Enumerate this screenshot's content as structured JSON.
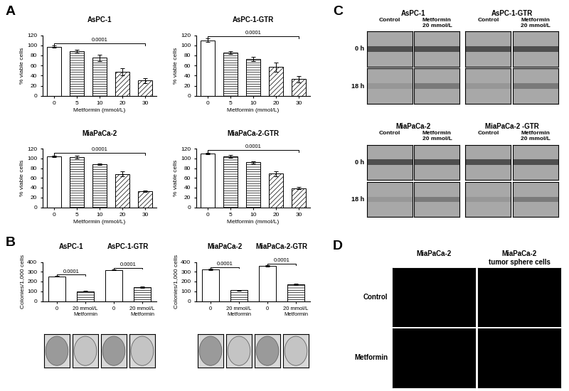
{
  "panel_labels": [
    "A",
    "B",
    "C",
    "D"
  ],
  "chart_data": [
    {
      "type": "bar",
      "title": "AsPC-1",
      "x_label": "Metformin (mmol/L)",
      "y_label": "% viable cells",
      "categories": [
        "0",
        "5",
        "10",
        "20",
        "30"
      ],
      "values": [
        97,
        88,
        75,
        47,
        30
      ],
      "errors": [
        2,
        3,
        6,
        7,
        5
      ],
      "color": "#ffffff",
      "ylim": [
        0,
        120
      ],
      "yticks": [
        0,
        20,
        40,
        60,
        80,
        100,
        120
      ],
      "annotations": [
        {
          "text": "0.0001",
          "between": [
            0,
            4
          ]
        }
      ]
    },
    {
      "type": "bar",
      "title": "AsPC-1-GTR",
      "x_label": "Metformin (mmol/L)",
      "y_label": "% viable cells",
      "categories": [
        "0",
        "5",
        "10",
        "20",
        "30"
      ],
      "values": [
        110,
        85,
        73,
        57,
        33
      ],
      "errors": [
        3,
        3,
        4,
        9,
        6
      ],
      "color": "#ffffff",
      "ylim": [
        0,
        120
      ],
      "yticks": [
        0,
        20,
        40,
        60,
        80,
        100,
        120
      ],
      "annotations": [
        {
          "text": "0.0001",
          "between": [
            0,
            4
          ]
        }
      ]
    },
    {
      "type": "bar",
      "title": "MiaPaCa-2",
      "x_label": "Metformin (mmol/L)",
      "y_label": "% viable cells",
      "categories": [
        "0",
        "5",
        "10",
        "20",
        "30"
      ],
      "values": [
        104,
        103,
        88,
        68,
        33
      ],
      "errors": [
        2,
        3,
        1,
        5,
        1
      ],
      "color": "#ffffff",
      "ylim": [
        0,
        120
      ],
      "yticks": [
        0,
        20,
        40,
        60,
        80,
        100,
        120
      ],
      "annotations": [
        {
          "text": "0.0001",
          "between": [
            0,
            4
          ]
        }
      ]
    },
    {
      "type": "bar",
      "title": "MiaPaCa-2-GTR",
      "x_label": "Metformin (mmol/L)",
      "y_label": "% viable cells",
      "categories": [
        "0",
        "5",
        "10",
        "20",
        "30"
      ],
      "values": [
        110,
        104,
        92,
        69,
        39
      ],
      "errors": [
        2,
        3,
        2,
        5,
        2
      ],
      "color": "#ffffff",
      "ylim": [
        0,
        120
      ],
      "yticks": [
        0,
        20,
        40,
        60,
        80,
        100,
        120
      ],
      "annotations": [
        {
          "text": "0.0001",
          "between": [
            0,
            4
          ]
        }
      ]
    },
    {
      "type": "bar",
      "y_label": "Colonies/1,000 cells",
      "groups": [
        "AsPC-1",
        "AsPC-1-GTR"
      ],
      "categories": [
        "0",
        "20 mmol/L\nMetformin",
        "0",
        "20 mmol/L\nMetformin"
      ],
      "values": [
        252,
        100,
        320,
        140
      ],
      "errors": [
        3,
        5,
        5,
        6
      ],
      "color": "#ffffff",
      "ylim": [
        0,
        400
      ],
      "yticks": [
        0,
        100,
        200,
        300,
        400
      ],
      "annotations": [
        {
          "text": "0.0001",
          "between": [
            0,
            1
          ]
        },
        {
          "text": "0.0001",
          "between": [
            2,
            3
          ]
        }
      ]
    },
    {
      "type": "bar",
      "y_label": "Colonies/1,000 cells",
      "groups": [
        "MiaPaCa-2",
        "MiaPaCa-2-GTR"
      ],
      "categories": [
        "0",
        "20 mmol/L\nMetformin",
        "0",
        "20 mmol/L\nMetformin"
      ],
      "values": [
        325,
        110,
        360,
        170
      ],
      "errors": [
        6,
        4,
        6,
        6
      ],
      "color": "#ffffff",
      "ylim": [
        0,
        400
      ],
      "yticks": [
        0,
        100,
        200,
        300,
        400
      ],
      "annotations": [
        {
          "text": "0.0001",
          "between": [
            0,
            1
          ]
        },
        {
          "text": "0.0001",
          "between": [
            2,
            3
          ]
        }
      ]
    }
  ],
  "scratch_assay": {
    "panels": [
      {
        "title": "AsPC-1",
        "columns": [
          "Control",
          "Metformin\n20 mmol/L"
        ],
        "rows": [
          "0 h",
          "18 h"
        ]
      },
      {
        "title": "AsPC-1-GTR",
        "columns": [
          "Control",
          "Metformin\n20 mmol/L"
        ]
      },
      {
        "title": "MiaPaCa-2",
        "columns": [
          "Control",
          "Metformin\n20 mmol/L"
        ],
        "rows": [
          "0 h",
          "18 h"
        ]
      },
      {
        "title": "MiaPaCa-2 -GTR",
        "columns": [
          "Control",
          "Metformin\n20 mmol/L"
        ]
      }
    ]
  },
  "sphere_images": {
    "columns": [
      "MiaPaCa-2",
      "MiaPaCa-2\ntumor sphere cells"
    ],
    "rows": [
      "Control",
      "Metformin"
    ]
  }
}
